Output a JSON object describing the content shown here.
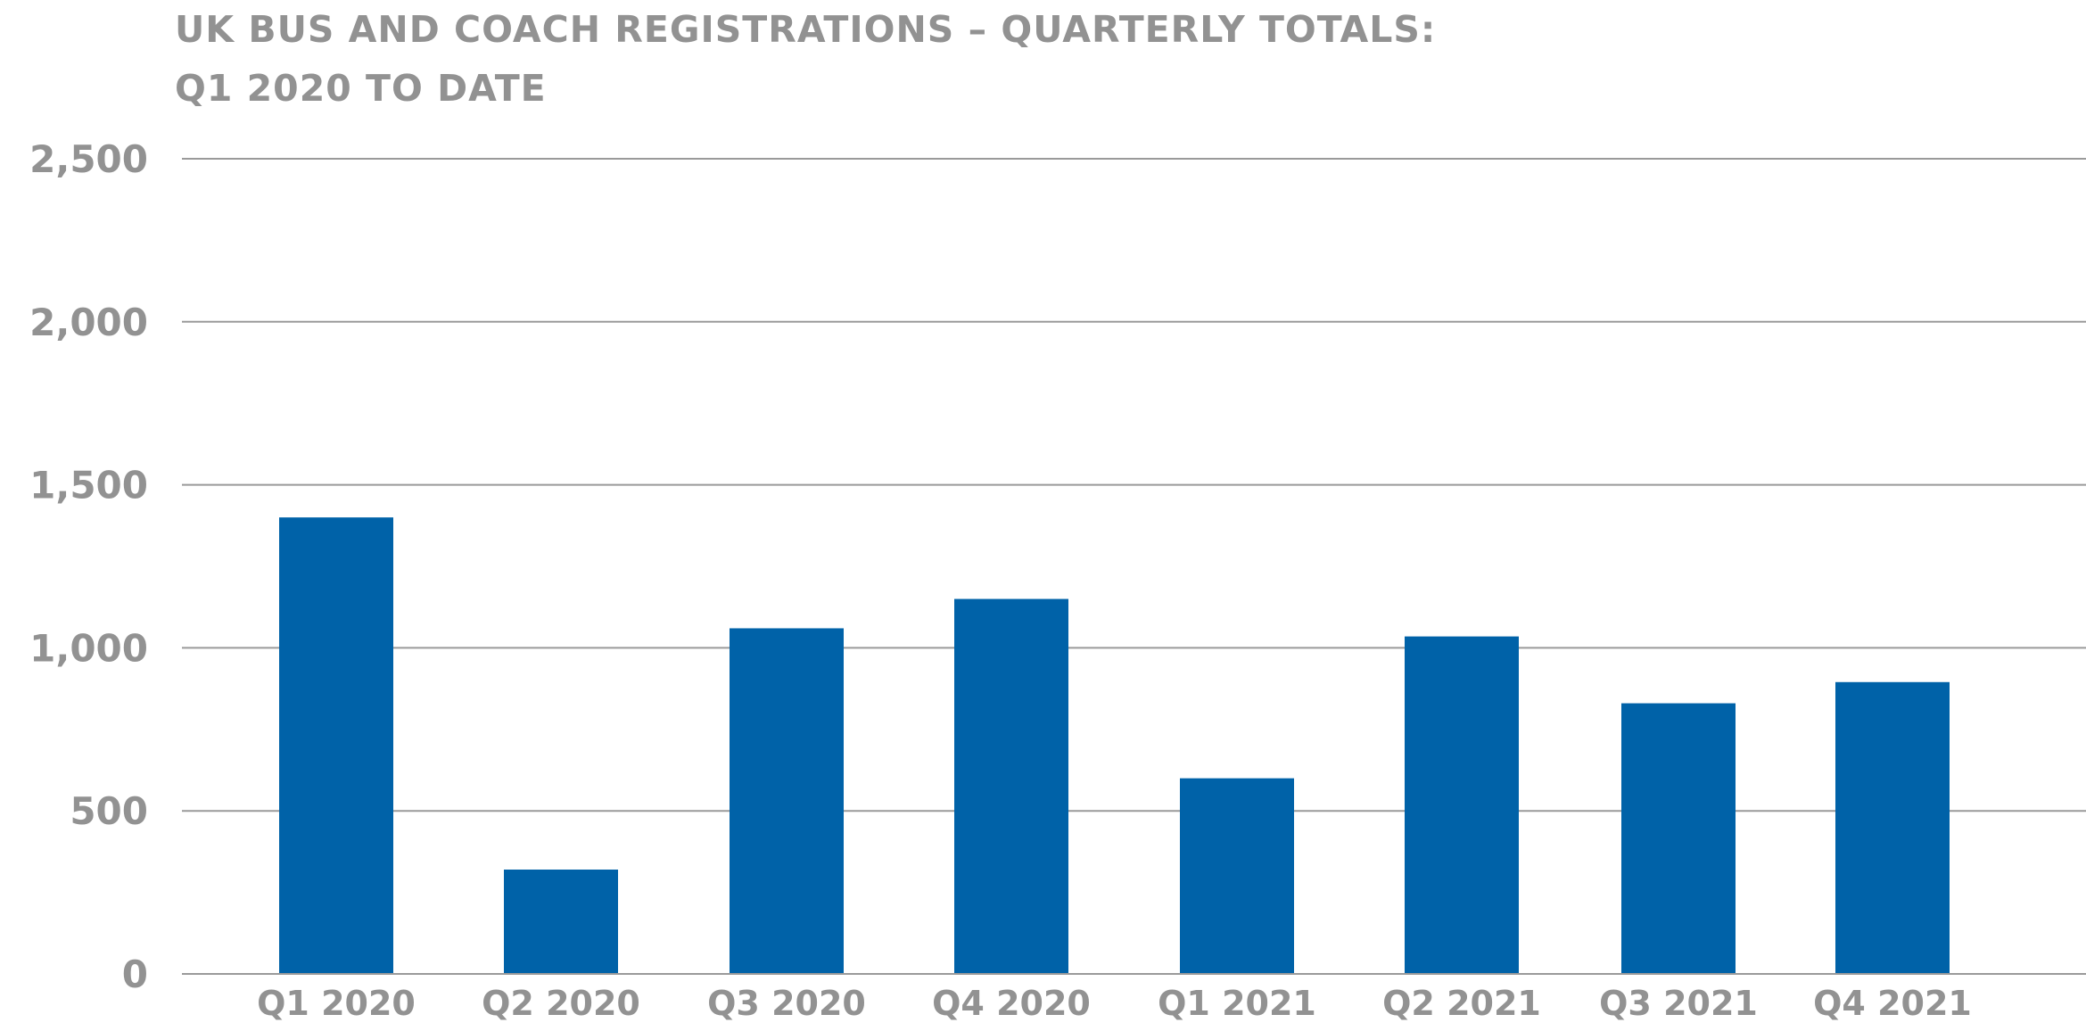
{
  "title_lines": [
    "UK BUS AND COACH REGISTRATIONS – QUARTERLY TOTALS:",
    "Q1 2020 TO DATE"
  ],
  "colors": {
    "bar": "#0062A8",
    "gridline": "#9a9a9a",
    "text": "#929292",
    "axis": "#9a9a9a"
  },
  "chart_data": {
    "type": "bar",
    "title": "UK BUS AND COACH REGISTRATIONS – QUARTERLY TOTALS: Q1 2020 TO DATE",
    "categories": [
      "Q1 2020",
      "Q2 2020",
      "Q3 2020",
      "Q4 2020",
      "Q1 2021",
      "Q2 2021",
      "Q3 2021",
      "Q4 2021"
    ],
    "values": [
      1400,
      320,
      1060,
      1150,
      600,
      1035,
      830,
      895
    ],
    "ylim": [
      0,
      2500
    ],
    "yticks": [
      0,
      500,
      1000,
      1500,
      2000,
      2500
    ],
    "ytick_labels": [
      "0",
      "500",
      "1,000",
      "1,500",
      "2,000",
      "2,500"
    ],
    "grid": true,
    "legend": "none",
    "xlabel": "",
    "ylabel": ""
  }
}
